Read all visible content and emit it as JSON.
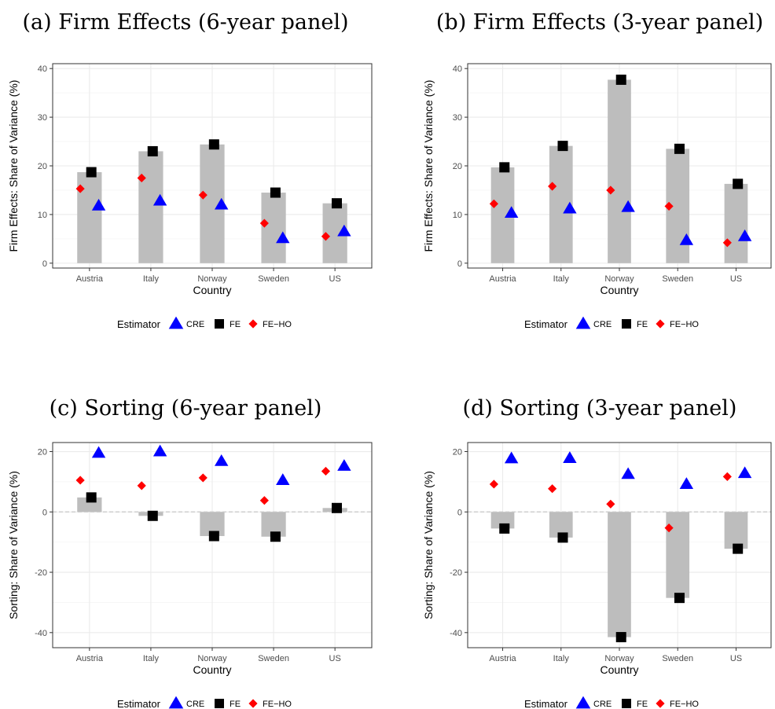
{
  "chart_data": [
    {
      "type": "bar",
      "title": "(a) Firm Effects (6-year panel)",
      "xlabel": "Country",
      "ylabel": "Firm Effects: Share of Variance (%)",
      "ylim": [
        -1,
        41
      ],
      "yticks": [
        0,
        10,
        20,
        30,
        40
      ],
      "categories": [
        "Austria",
        "Italy",
        "Norway",
        "Sweden",
        "US"
      ],
      "bar_series": "FE",
      "series": [
        {
          "name": "CRE",
          "values": [
            11.8,
            12.8,
            12.0,
            5.1,
            6.5
          ]
        },
        {
          "name": "FE",
          "values": [
            18.7,
            23.0,
            24.4,
            14.5,
            12.3
          ]
        },
        {
          "name": "FE−HO",
          "values": [
            15.3,
            17.5,
            14.0,
            8.2,
            5.5
          ]
        }
      ],
      "legend": {
        "title": "Estimator",
        "position": "bottom"
      },
      "grid": true
    },
    {
      "type": "bar",
      "title": "(b) Firm Effects (3-year panel)",
      "xlabel": "Country",
      "ylabel": "Firm Effects: Share of Variance (%)",
      "ylim": [
        -1,
        41
      ],
      "yticks": [
        0,
        10,
        20,
        30,
        40
      ],
      "categories": [
        "Austria",
        "Italy",
        "Norway",
        "Sweden",
        "US"
      ],
      "bar_series": "FE",
      "series": [
        {
          "name": "CRE",
          "values": [
            10.3,
            11.2,
            11.5,
            4.7,
            5.5
          ]
        },
        {
          "name": "FE",
          "values": [
            19.7,
            24.1,
            37.7,
            23.5,
            16.3
          ]
        },
        {
          "name": "FE−HO",
          "values": [
            12.2,
            15.8,
            15.0,
            11.7,
            4.2
          ]
        }
      ],
      "legend": {
        "title": "Estimator",
        "position": "bottom"
      },
      "grid": true
    },
    {
      "type": "bar",
      "title": "(c) Sorting (6-year panel)",
      "xlabel": "Country",
      "ylabel": "Sorting: Share of Variance (%)",
      "ylim": [
        -45,
        23
      ],
      "yticks": [
        -40,
        -20,
        0,
        20
      ],
      "categories": [
        "Austria",
        "Italy",
        "Norway",
        "Sweden",
        "US"
      ],
      "bar_series": "FE",
      "series": [
        {
          "name": "CRE",
          "values": [
            19.5,
            20.0,
            16.8,
            10.5,
            15.2
          ]
        },
        {
          "name": "FE",
          "values": [
            4.8,
            -1.3,
            -8.0,
            -8.2,
            1.3
          ]
        },
        {
          "name": "FE−HO",
          "values": [
            10.5,
            8.7,
            11.3,
            3.8,
            13.5
          ]
        }
      ],
      "legend": {
        "title": "Estimator",
        "position": "bottom"
      },
      "grid": true
    },
    {
      "type": "bar",
      "title": "(d) Sorting (3-year panel)",
      "xlabel": "Country",
      "ylabel": "Sorting: Share of Variance (%)",
      "ylim": [
        -45,
        23
      ],
      "yticks": [
        -40,
        -20,
        0,
        20
      ],
      "categories": [
        "Austria",
        "Italy",
        "Norway",
        "Sweden",
        "US"
      ],
      "bar_series": "FE",
      "series": [
        {
          "name": "CRE",
          "values": [
            17.7,
            17.8,
            12.5,
            9.2,
            12.8
          ]
        },
        {
          "name": "FE",
          "values": [
            -5.5,
            -8.5,
            -41.5,
            -28.5,
            -12.2
          ]
        },
        {
          "name": "FE−HO",
          "values": [
            9.2,
            7.7,
            2.6,
            -5.3,
            11.7
          ]
        }
      ],
      "legend": {
        "title": "Estimator",
        "position": "bottom"
      },
      "grid": true
    }
  ],
  "colors": {
    "bar": "#bdbdbd",
    "CRE": "#0000ff",
    "FE": "#000000",
    "FE−HO": "#ff0000",
    "grid_major": "#ebebeb",
    "grid_minor": "#f5f5f5",
    "zero_line": "#c8c8c8"
  }
}
